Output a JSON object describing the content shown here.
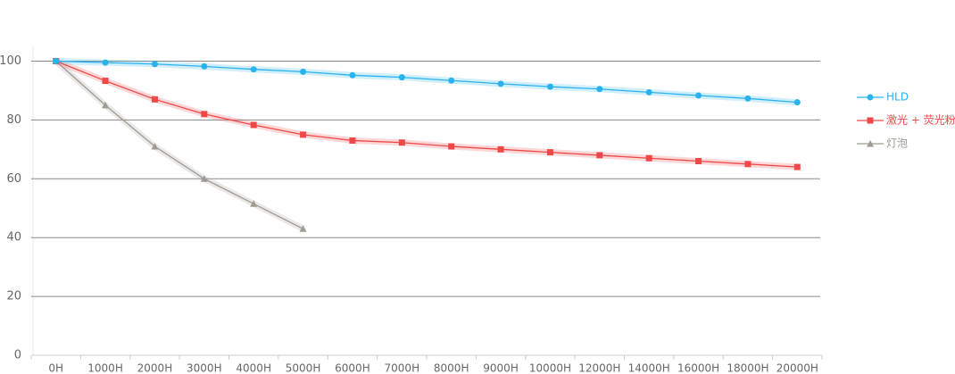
{
  "chart_data": {
    "type": "line",
    "categories": [
      "0H",
      "1000H",
      "2000H",
      "3000H",
      "4000H",
      "5000H",
      "6000H",
      "7000H",
      "8000H",
      "9000H",
      "10000H",
      "12000H",
      "14000H",
      "16000H",
      "18000H",
      "20000H"
    ],
    "series": [
      {
        "name": "HLD",
        "color": "#29b3ee",
        "marker": "circle",
        "values": [
          100,
          99.5,
          99,
          98.2,
          97.2,
          96.4,
          95.2,
          94.5,
          93.4,
          92.3,
          91.3,
          90.5,
          89.4,
          88.3,
          87.3,
          86
        ]
      },
      {
        "name": "激光 + 荧光粉",
        "color": "#f04848",
        "marker": "square",
        "values": [
          100,
          93.3,
          87,
          82,
          78.3,
          75,
          73,
          72.3,
          71,
          70,
          69,
          68,
          67,
          66,
          65,
          64
        ]
      },
      {
        "name": "灯泡",
        "color": "#a09a90",
        "marker": "triangle",
        "values": [
          100,
          85,
          71,
          60,
          51.5,
          43,
          null,
          null,
          null,
          null,
          null,
          null,
          null,
          null,
          null,
          null
        ]
      }
    ],
    "ylim": [
      0,
      105
    ],
    "yticks": [
      0,
      20,
      40,
      60,
      80,
      100
    ],
    "grid": true,
    "legend": "right"
  }
}
